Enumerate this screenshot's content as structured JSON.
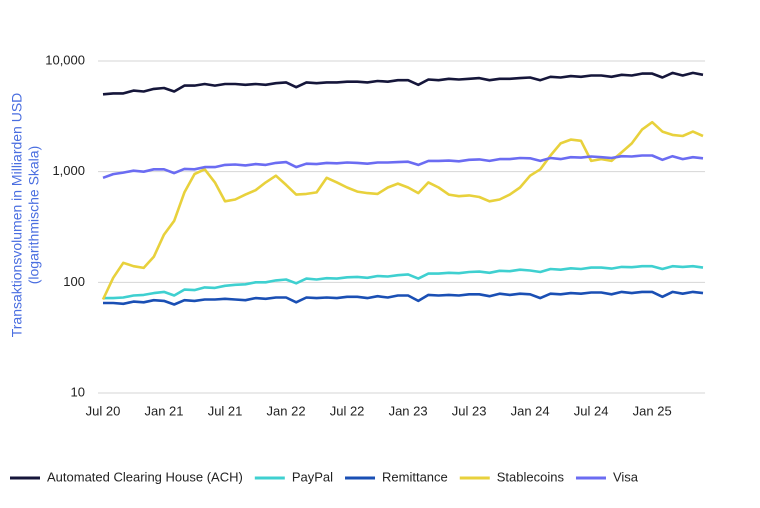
{
  "chart_data": {
    "type": "line",
    "ylabel": [
      "Transaktionsvolumen in Milliarden USD",
      "(logarithmische Skala)"
    ],
    "log_scale": true,
    "grid": true,
    "legend": "bottom",
    "ylim": [
      10,
      10000
    ],
    "yticks": [
      {
        "value": 10000,
        "label": "10,000"
      },
      {
        "value": 1000,
        "label": "1,000"
      },
      100,
      10
    ],
    "categories": [
      "Jul 20",
      null,
      null,
      null,
      null,
      null,
      "Jan 21",
      null,
      null,
      null,
      null,
      null,
      "Jul 21",
      null,
      null,
      null,
      null,
      null,
      "Jan 22",
      null,
      null,
      null,
      null,
      null,
      "Jul 22",
      null,
      null,
      null,
      null,
      null,
      "Jan 23",
      null,
      null,
      null,
      null,
      null,
      "Jul 23",
      null,
      null,
      null,
      null,
      null,
      "Jan 24",
      null,
      null,
      null,
      null,
      null,
      "Jul 24",
      null,
      null,
      null,
      null,
      null,
      "Jan 25",
      null,
      null,
      null,
      null,
      null
    ],
    "series": [
      {
        "name": "Automated Clearing House (ACH)",
        "color": "#15163a",
        "values": [
          5000,
          5100,
          5100,
          5400,
          5300,
          5600,
          5700,
          5300,
          6000,
          6000,
          6200,
          6000,
          6200,
          6200,
          6100,
          6200,
          6100,
          6300,
          6400,
          5800,
          6400,
          6300,
          6400,
          6400,
          6500,
          6500,
          6400,
          6600,
          6500,
          6700,
          6700,
          6100,
          6800,
          6700,
          6900,
          6800,
          6900,
          7000,
          6700,
          6900,
          6900,
          7000,
          7100,
          6700,
          7200,
          7100,
          7300,
          7200,
          7400,
          7400,
          7200,
          7500,
          7400,
          7700,
          7700,
          7100,
          7800,
          7400,
          7800,
          7500
        ]
      },
      {
        "name": "PayPal",
        "color": "#3fd0d0",
        "values": [
          72,
          72,
          73,
          76,
          77,
          80,
          82,
          76,
          86,
          85,
          90,
          89,
          93,
          95,
          96,
          100,
          100,
          104,
          106,
          98,
          108,
          106,
          109,
          108,
          111,
          112,
          110,
          114,
          113,
          116,
          118,
          108,
          120,
          120,
          122,
          121,
          124,
          125,
          122,
          127,
          126,
          130,
          128,
          124,
          132,
          130,
          134,
          132,
          136,
          136,
          133,
          138,
          137,
          140,
          140,
          132,
          140,
          138,
          140,
          136
        ]
      },
      {
        "name": "Remittance",
        "color": "#1a4fb4",
        "values": [
          65,
          65,
          64,
          67,
          66,
          69,
          68,
          63,
          69,
          68,
          70,
          70,
          71,
          70,
          69,
          72,
          71,
          73,
          73,
          66,
          73,
          72,
          73,
          72,
          74,
          74,
          72,
          75,
          73,
          76,
          76,
          68,
          77,
          76,
          77,
          76,
          78,
          78,
          75,
          79,
          77,
          79,
          78,
          72,
          79,
          78,
          80,
          79,
          81,
          81,
          78,
          82,
          80,
          82,
          82,
          74,
          82,
          79,
          82,
          80
        ]
      },
      {
        "name": "Stablecoins",
        "color": "#e8d13c",
        "values": [
          70,
          110,
          150,
          140,
          135,
          170,
          270,
          360,
          650,
          950,
          1050,
          800,
          540,
          560,
          620,
          680,
          800,
          920,
          760,
          620,
          630,
          650,
          880,
          800,
          720,
          660,
          640,
          630,
          720,
          780,
          720,
          640,
          800,
          720,
          620,
          600,
          610,
          590,
          540,
          560,
          620,
          720,
          920,
          1050,
          1400,
          1800,
          1950,
          1900,
          1250,
          1300,
          1250,
          1500,
          1800,
          2400,
          2800,
          2300,
          2150,
          2100,
          2300,
          2100
        ]
      },
      {
        "name": "Visa",
        "color": "#6b6cf2",
        "values": [
          880,
          950,
          980,
          1020,
          1000,
          1050,
          1050,
          970,
          1060,
          1050,
          1100,
          1100,
          1150,
          1160,
          1140,
          1170,
          1150,
          1200,
          1220,
          1100,
          1180,
          1170,
          1200,
          1190,
          1210,
          1200,
          1180,
          1210,
          1210,
          1220,
          1230,
          1150,
          1250,
          1250,
          1260,
          1240,
          1280,
          1290,
          1250,
          1300,
          1300,
          1330,
          1320,
          1250,
          1330,
          1300,
          1350,
          1340,
          1370,
          1350,
          1330,
          1380,
          1370,
          1400,
          1400,
          1280,
          1380,
          1300,
          1350,
          1320
        ]
      }
    ]
  }
}
